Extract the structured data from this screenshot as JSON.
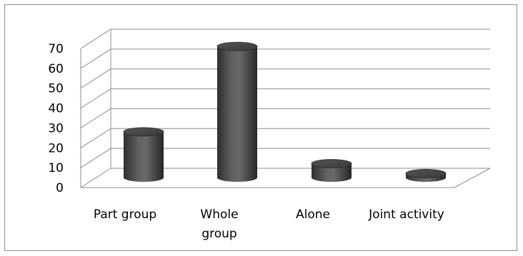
{
  "chart_data": {
    "type": "bar",
    "style": "3d-cylinder",
    "categories": [
      "Part group",
      "Whole group",
      "Alone",
      "Joint activity"
    ],
    "category_label_lines": [
      [
        "Part group"
      ],
      [
        "Whole",
        "group"
      ],
      [
        "Alone"
      ],
      [
        "Joint activity"
      ]
    ],
    "values": [
      23,
      66,
      7,
      2
    ],
    "ylim": [
      0,
      70
    ],
    "yticks": [
      0,
      10,
      20,
      30,
      40,
      50,
      60,
      70
    ],
    "grid": true,
    "legend": "none",
    "title": "",
    "xlabel": "",
    "ylabel": "",
    "colors": {
      "bar": "#4a4a4a",
      "grid": "#8c8c8c",
      "border": "#8c8c8c"
    }
  }
}
